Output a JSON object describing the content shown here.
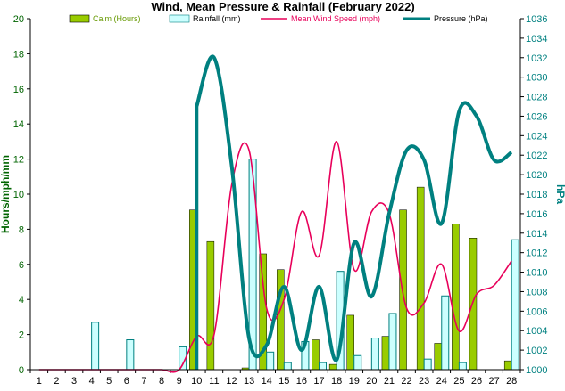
{
  "chart_data": {
    "type": "bar",
    "title": "Wind, Mean Pressure & Rainfall (February 2022)",
    "ylabel": "Hours/mph/mm",
    "y2label": "hPa",
    "categories": [
      "1",
      "2",
      "3",
      "4",
      "5",
      "6",
      "7",
      "8",
      "9",
      "10",
      "11",
      "12",
      "13",
      "14",
      "15",
      "16",
      "17",
      "18",
      "19",
      "20",
      "21",
      "22",
      "23",
      "24",
      "25",
      "26",
      "27",
      "28"
    ],
    "ylim": [
      0,
      20
    ],
    "yticks": [
      0,
      2,
      4,
      6,
      8,
      10,
      12,
      14,
      16,
      18,
      20
    ],
    "y2lim": [
      1000,
      1036
    ],
    "y2ticks": [
      1000,
      1002,
      1004,
      1006,
      1008,
      1010,
      1012,
      1014,
      1016,
      1018,
      1020,
      1022,
      1024,
      1026,
      1028,
      1030,
      1032,
      1034,
      1036
    ],
    "legend_position": "top",
    "series": [
      {
        "name": "Calm (Hours)",
        "kind": "bar",
        "axis": "left",
        "color": "#99CC00",
        "values": [
          0,
          0,
          0,
          0,
          0,
          0,
          0,
          0,
          0,
          9.1,
          7.3,
          0,
          0.1,
          6.6,
          5.7,
          0,
          1.7,
          0.3,
          3.1,
          0,
          1.9,
          9.1,
          10.4,
          1.5,
          8.3,
          7.5,
          0,
          0.5
        ]
      },
      {
        "name": "Rainfall (mm)",
        "kind": "bar",
        "axis": "left",
        "color": "#CCFFFF",
        "values": [
          0,
          0,
          0,
          2.7,
          0,
          1.7,
          0,
          0,
          1.3,
          0,
          0,
          0,
          12.0,
          1.0,
          0.4,
          1.6,
          0.4,
          5.6,
          0.8,
          1.8,
          3.2,
          0,
          0.6,
          4.2,
          0.4,
          0,
          0,
          7.4
        ]
      },
      {
        "name": "Mean Wind Speed (mph)",
        "kind": "line",
        "axis": "left",
        "color": "#E8005A",
        "values": [
          0,
          0,
          0,
          0,
          0,
          0,
          0,
          0,
          0,
          1.9,
          2.0,
          10.5,
          12.5,
          3.5,
          4.0,
          9.0,
          6.5,
          13.0,
          5.7,
          9.0,
          8.9,
          3.5,
          3.8,
          6.0,
          2.2,
          4.3,
          4.8,
          6.2
        ]
      },
      {
        "name": "Pressure (hPa)",
        "kind": "line",
        "axis": "right",
        "color": "#008080",
        "values": [
          null,
          null,
          null,
          null,
          null,
          null,
          null,
          null,
          null,
          1027,
          1032,
          1021,
          1003.2,
          1002.5,
          1008.5,
          1002,
          1008.5,
          1001,
          1013,
          1007.5,
          1016,
          1022.5,
          1021.5,
          1015,
          1026.5,
          1026,
          1021.5,
          1022.3
        ]
      }
    ]
  }
}
